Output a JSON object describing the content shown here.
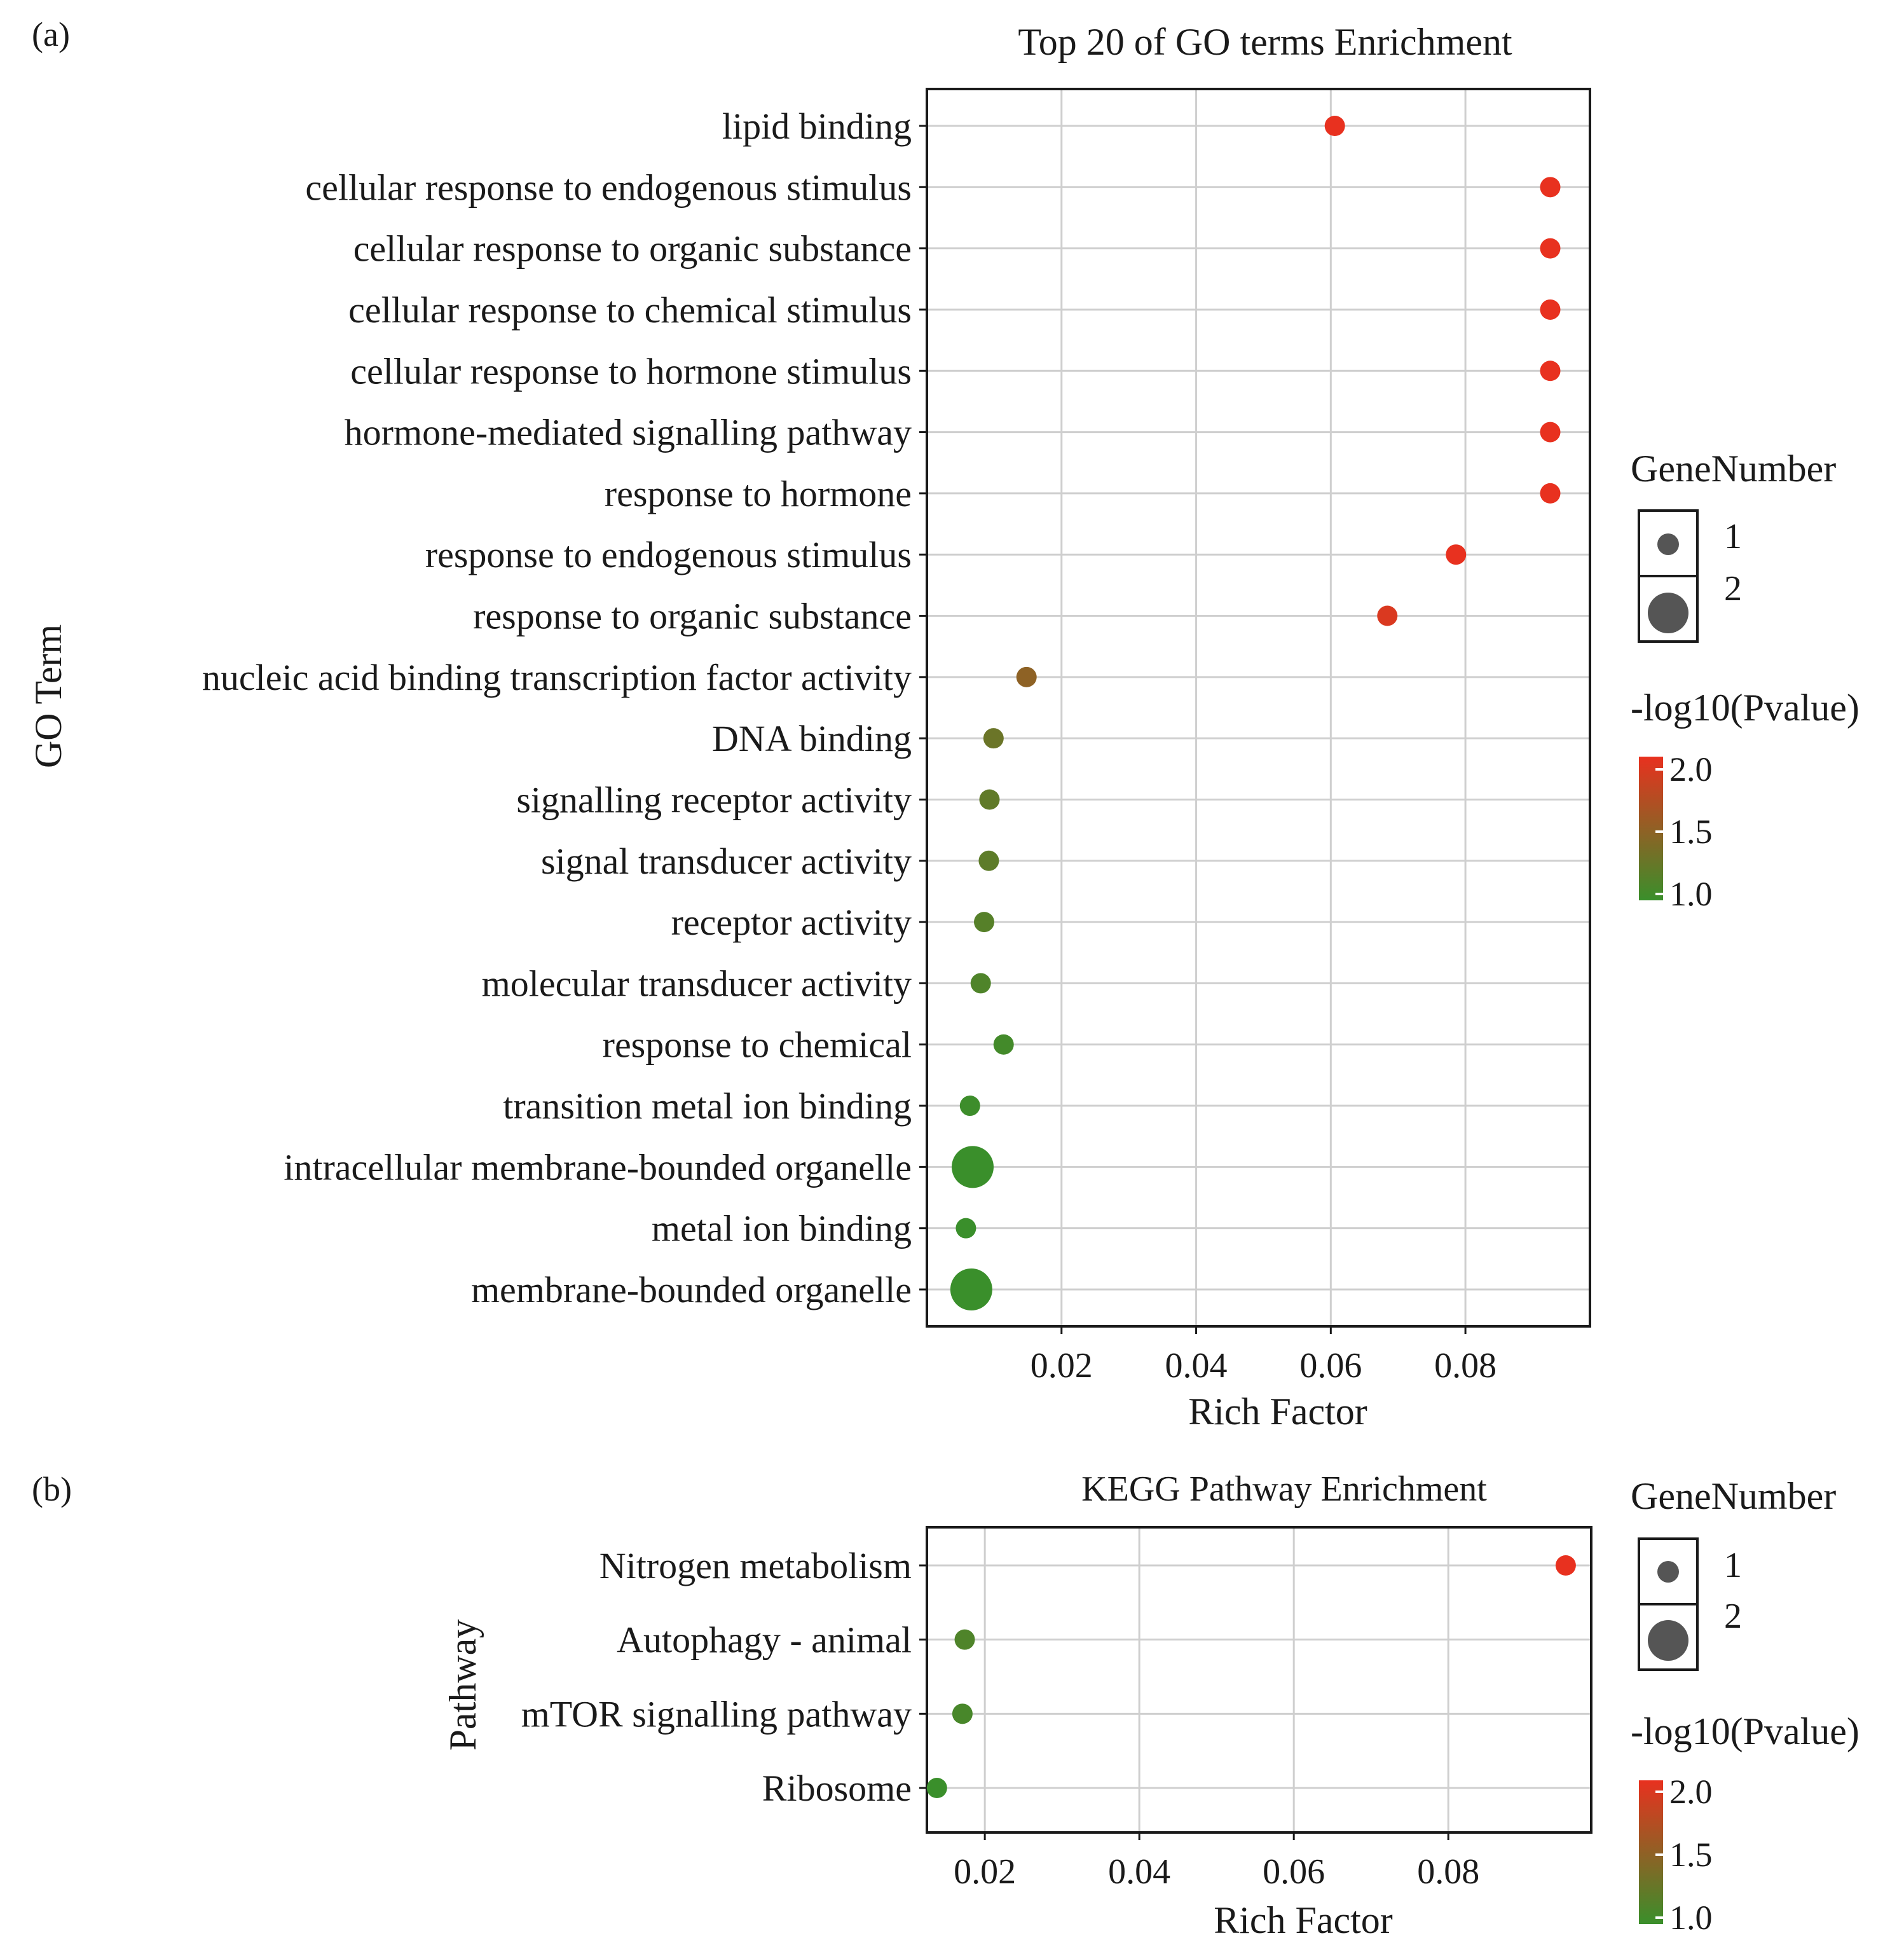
{
  "chart_data": [
    {
      "panel_label": "(a)",
      "type": "scatter",
      "title": "Top 20 of GO terms Enrichment",
      "xlabel": "Rich Factor",
      "ylabel": "GO Term",
      "xlim": [
        0,
        0.0985
      ],
      "xticks": [
        0.02,
        0.04,
        0.06,
        0.08
      ],
      "tick_labels": [
        "0.02",
        "0.04",
        "0.06",
        "0.08"
      ],
      "grid": true,
      "categories": [
        "lipid binding",
        "cellular response to endogenous stimulus",
        "cellular response to organic substance",
        "cellular response to chemical stimulus",
        "cellular response to hormone stimulus",
        "hormone-mediated signalling pathway",
        "response to hormone",
        "response to endogenous stimulus",
        "response to organic substance",
        "nucleic acid binding transcription factor activity",
        "DNA binding",
        "signalling receptor activity",
        "signal transducer activity",
        "receptor activity",
        "molecular transducer activity",
        "response to chemical",
        "transition metal ion binding",
        "intracellular membrane-bounded organelle",
        "metal ion binding",
        "membrane-bounded organelle"
      ],
      "rich_factor": [
        0.0606,
        0.0926,
        0.0926,
        0.0926,
        0.0926,
        0.0926,
        0.0926,
        0.0786,
        0.0684,
        0.0148,
        0.0099,
        0.0093,
        0.0092,
        0.0085,
        0.008,
        0.0114,
        0.0064,
        0.0068,
        0.0058,
        0.0066
      ],
      "gene_number": [
        1,
        1,
        1,
        1,
        1,
        1,
        1,
        1,
        1,
        1,
        1,
        1,
        1,
        1,
        1,
        1,
        1,
        2,
        1,
        2
      ],
      "neg_log10_pvalue": [
        2.05,
        2.05,
        2.05,
        2.05,
        2.05,
        2.05,
        2.05,
        2.0,
        1.92,
        1.48,
        1.28,
        1.22,
        1.2,
        1.16,
        1.12,
        1.05,
        1.02,
        0.95,
        0.98,
        0.93
      ],
      "size_legend": {
        "title": "GeneNumber",
        "labels": [
          "1",
          "2"
        ]
      },
      "color_legend": {
        "title": "-log10(Pvalue)",
        "labels": [
          "2.0",
          "1.5",
          "1.0"
        ],
        "low_color": "#3a8f2b",
        "high_color": "#e8311f"
      },
      "legend_position": "right"
    },
    {
      "panel_label": "(b)",
      "type": "scatter",
      "title": "KEGG Pathway Enrichment",
      "xlabel": "Rich Factor",
      "ylabel": "Pathway",
      "xlim": [
        0.0125,
        0.0985
      ],
      "xticks": [
        0.02,
        0.04,
        0.06,
        0.08
      ],
      "tick_labels": [
        "0.02",
        "0.04",
        "0.06",
        "0.08"
      ],
      "grid": true,
      "categories": [
        "Nitrogen metabolism",
        "Autophagy - animal",
        "mTOR signalling pathway",
        "Ribosome"
      ],
      "rich_factor": [
        0.0952,
        0.0174,
        0.0171,
        0.0138
      ],
      "gene_number": [
        1,
        1,
        1,
        1
      ],
      "neg_log10_pvalue": [
        2.05,
        1.12,
        1.08,
        0.95
      ],
      "size_legend": {
        "title": "GeneNumber",
        "labels": [
          "1",
          "2"
        ]
      },
      "color_legend": {
        "title": "-log10(Pvalue)",
        "labels": [
          "2.0",
          "1.5",
          "1.0"
        ],
        "low_color": "#3a8f2b",
        "high_color": "#e8311f"
      },
      "legend_position": "right"
    }
  ]
}
